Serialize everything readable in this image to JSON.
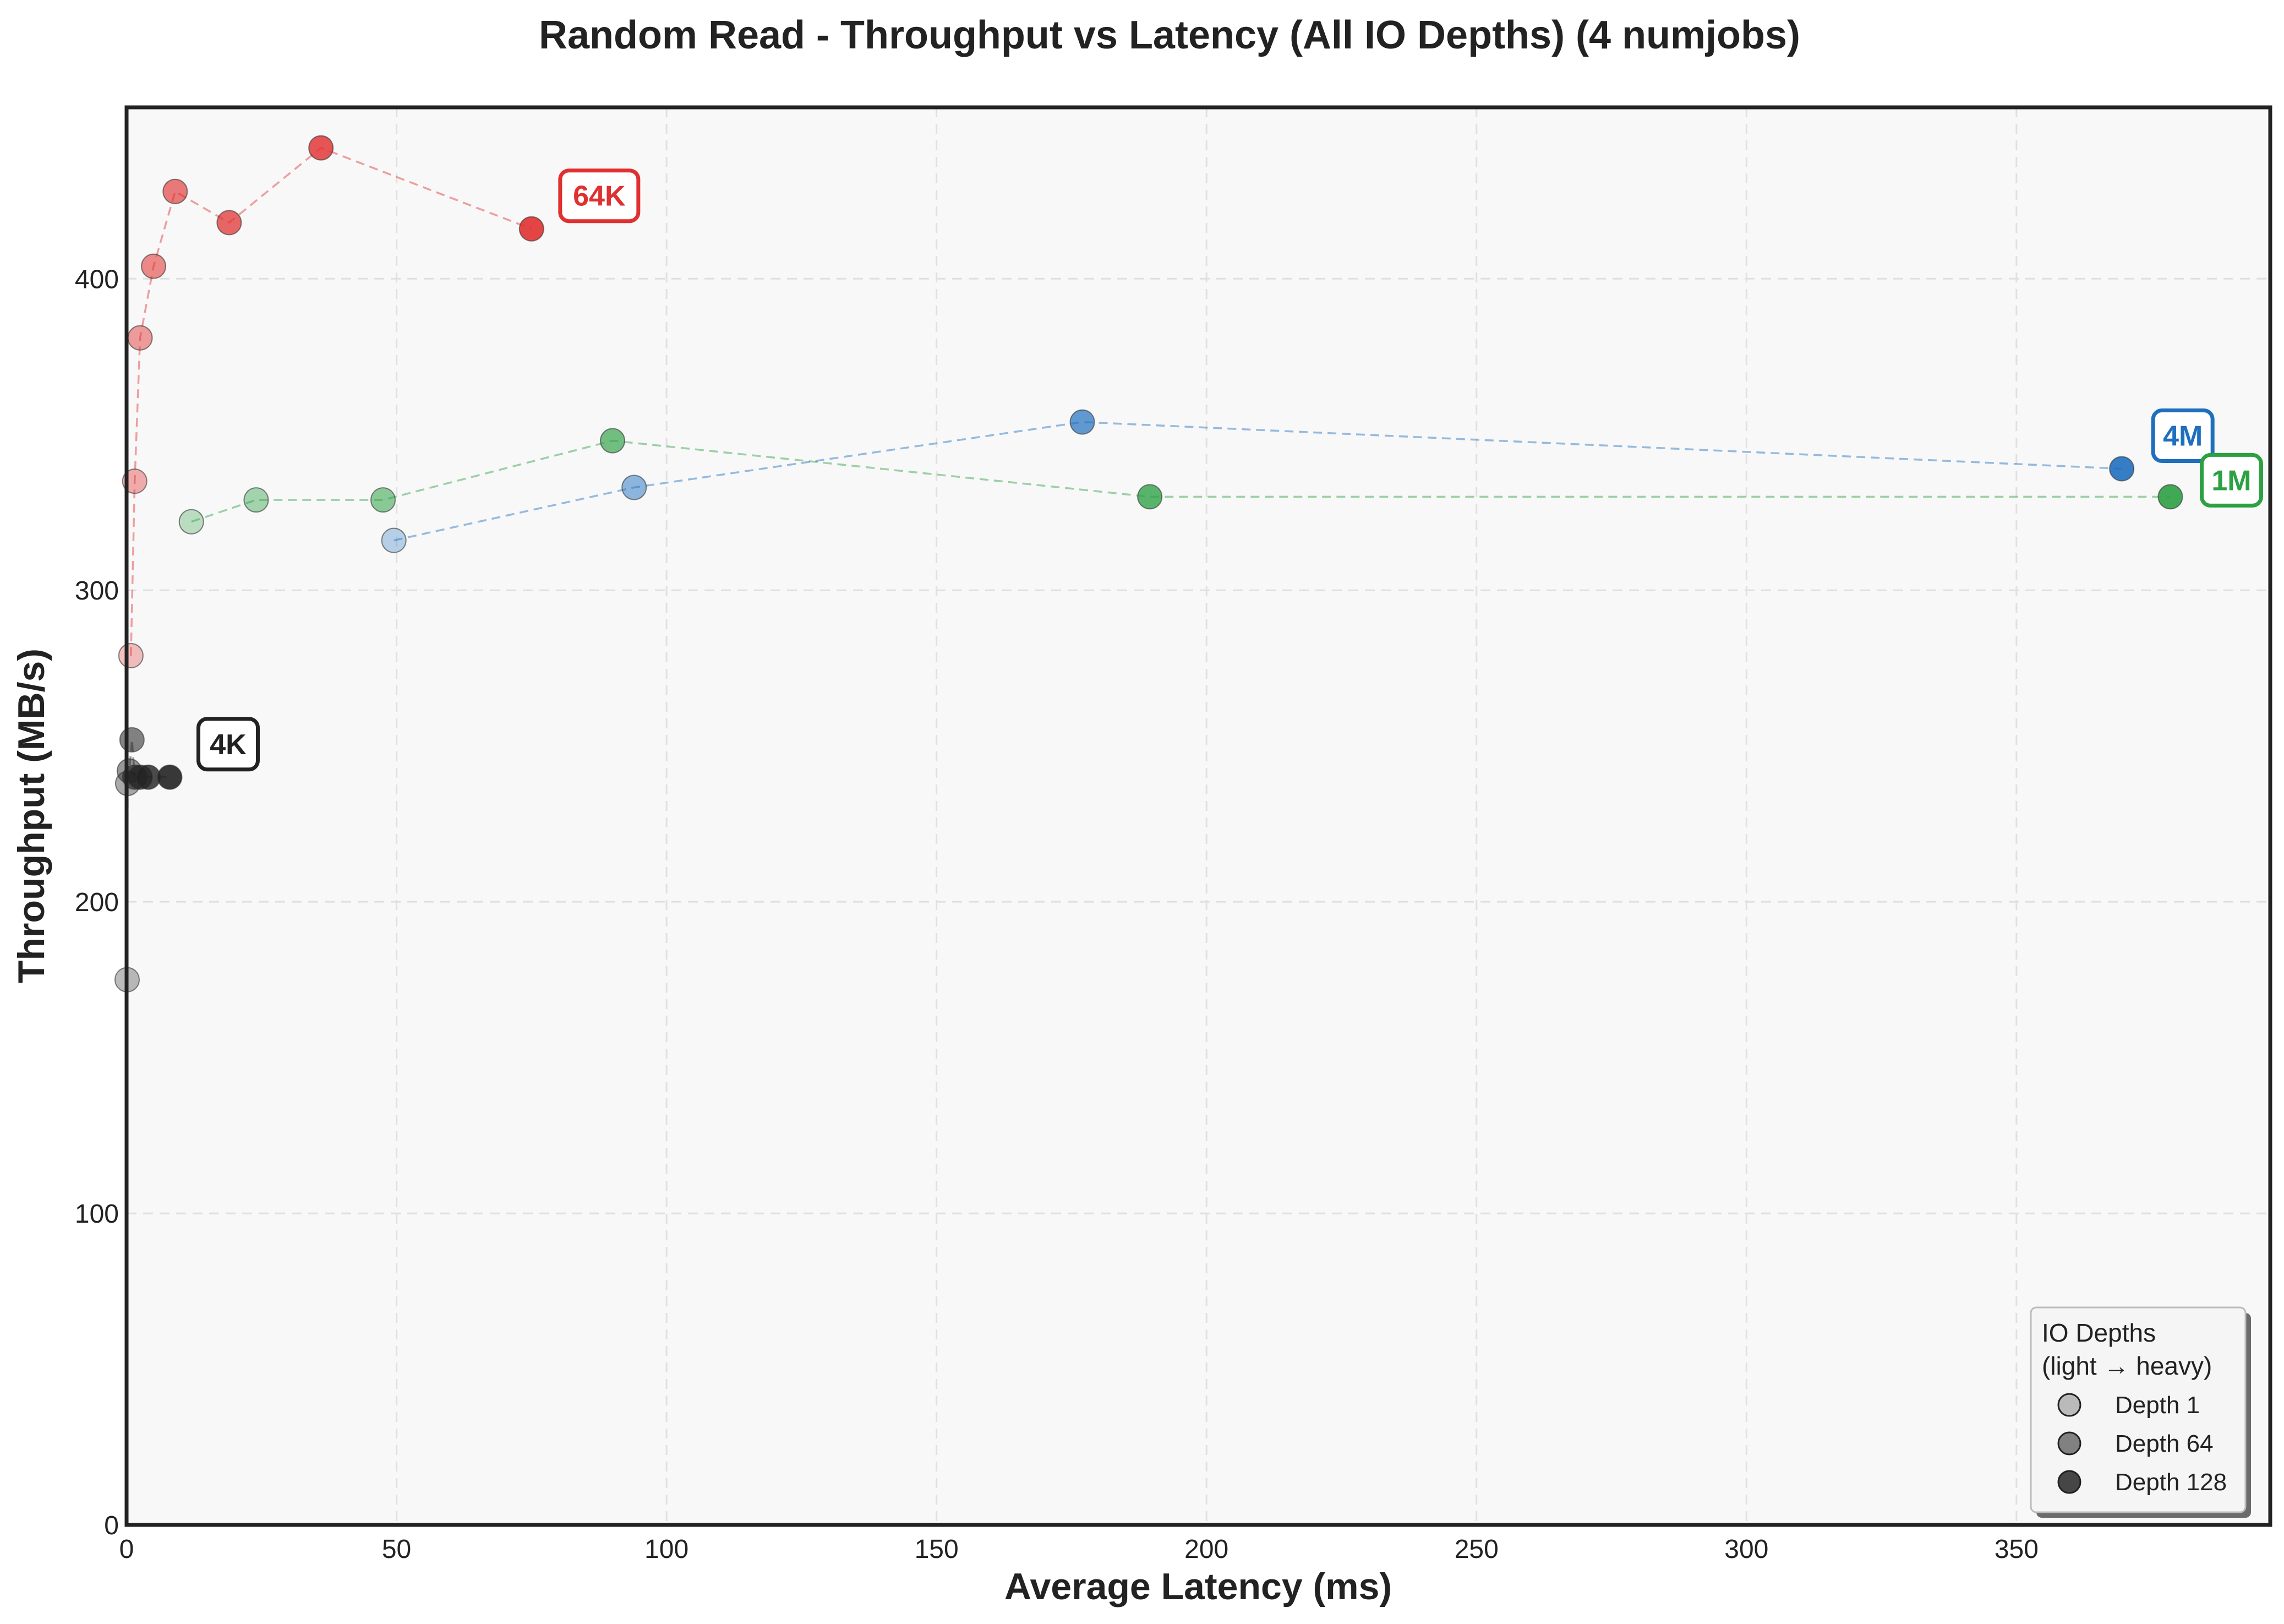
{
  "chart_data": {
    "type": "scatter",
    "title": "Random Read - Throughput vs Latency (All IO Depths) (4 numjobs)",
    "xlabel": "Average Latency (ms)",
    "ylabel": "Throughput (MB/s)",
    "xlim": [
      0,
      397
    ],
    "ylim": [
      0,
      455
    ],
    "xticks": [
      0,
      50,
      100,
      150,
      200,
      250,
      300,
      350
    ],
    "yticks": [
      0,
      100,
      200,
      300,
      400
    ],
    "grid": true,
    "legend": {
      "title_line1": "IO Depths",
      "title_line2": "(light → heavy)",
      "placement": "bottom-right",
      "entries": [
        {
          "label": "Depth 1",
          "alpha": 0.3
        },
        {
          "label": "Depth 64",
          "alpha": 0.6
        },
        {
          "label": "Depth 128",
          "alpha": 0.9
        }
      ]
    },
    "series": [
      {
        "name": "4K",
        "color": "#222222",
        "points": [
          [
            0.1,
            175
          ],
          [
            0.2,
            238
          ],
          [
            0.5,
            242
          ],
          [
            1.0,
            252
          ],
          [
            1.5,
            240
          ],
          [
            2.5,
            240
          ],
          [
            4.0,
            240
          ],
          [
            8.0,
            240
          ]
        ]
      },
      {
        "name": "64K",
        "color": "#e03030",
        "points": [
          [
            0.8,
            279
          ],
          [
            1.5,
            335
          ],
          [
            2.5,
            381
          ],
          [
            5.0,
            404
          ],
          [
            9.0,
            428
          ],
          [
            19.0,
            418
          ],
          [
            36.0,
            442
          ],
          [
            75.0,
            416
          ]
        ]
      },
      {
        "name": "1M",
        "color": "#2ca043",
        "points": [
          [
            12.0,
            322
          ],
          [
            24.0,
            329
          ],
          [
            47.5,
            329
          ],
          [
            90.0,
            348
          ],
          [
            189.5,
            330
          ],
          [
            378.5,
            330
          ]
        ]
      },
      {
        "name": "4M",
        "color": "#1f6fbf",
        "points": [
          [
            49.5,
            316
          ],
          [
            94.0,
            333
          ],
          [
            177.0,
            354
          ],
          [
            369.5,
            339
          ]
        ]
      }
    ],
    "series_labels": [
      {
        "series": "4K"
      },
      {
        "series": "64K"
      },
      {
        "series": "4M"
      },
      {
        "series": "1M"
      }
    ]
  }
}
